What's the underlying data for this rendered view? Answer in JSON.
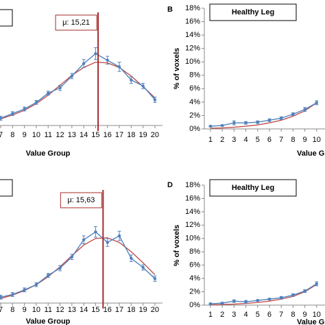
{
  "chart_data": [
    {
      "type": "line",
      "xlabel": "Value Group",
      "x": [
        7,
        8,
        9,
        10,
        11,
        12,
        13,
        14,
        15,
        16,
        17,
        18,
        19,
        20
      ],
      "xlim": [
        6.94,
        20.64
      ],
      "xticks": [
        7,
        8,
        9,
        10,
        11,
        12,
        13,
        14,
        15,
        16,
        17,
        18,
        19,
        20
      ],
      "ylim": [
        0,
        18
      ],
      "mu_line": {
        "value": 15.21,
        "label": "μ: 15,21"
      },
      "series": [
        {
          "color": "#4f81bd",
          "values": [
            1.1,
            1.8,
            2.5,
            3.5,
            4.9,
            5.7,
            7.5,
            9.4,
            10.9,
            9.9,
            8.9,
            6.9,
            6.0,
            3.9
          ],
          "errors": [
            0.3,
            0.3,
            0.3,
            0.3,
            0.3,
            0.4,
            0.4,
            0.6,
            0.9,
            0.6,
            0.7,
            0.5,
            0.4,
            0.4
          ]
        },
        {
          "color": "#c0504d",
          "values": [
            1.0,
            1.6,
            2.3,
            3.3,
            4.6,
            6.1,
            7.6,
            8.8,
            9.6,
            9.5,
            8.8,
            7.5,
            5.9,
            4.2
          ]
        }
      ]
    },
    {
      "type": "line",
      "panel_label": "B",
      "title": "Healthy Leg",
      "xlabel": "Value Group",
      "ylabel": "% of voxels",
      "x": [
        1,
        2,
        3,
        4,
        5,
        6,
        7,
        8,
        9,
        10
      ],
      "xlim": [
        0.48,
        10.71
      ],
      "xticks": [
        1,
        2,
        3,
        4,
        5,
        6,
        7,
        8,
        9,
        10
      ],
      "ylim": [
        0,
        18
      ],
      "yticks": [
        {
          "value": 0,
          "label": "0%"
        },
        {
          "value": 2,
          "label": "2%"
        },
        {
          "value": 4,
          "label": "4%"
        },
        {
          "value": 6,
          "label": "6%"
        },
        {
          "value": 8,
          "label": "8%"
        },
        {
          "value": 10,
          "label": "10%"
        },
        {
          "value": 12,
          "label": "12%"
        },
        {
          "value": 14,
          "label": "14%"
        },
        {
          "value": 16,
          "label": "16%"
        },
        {
          "value": 18,
          "label": "18%"
        }
      ],
      "series": [
        {
          "color": "#4f81bd",
          "values": [
            0.4,
            0.5,
            0.9,
            0.9,
            1.0,
            1.3,
            1.6,
            2.2,
            2.9,
            3.9
          ],
          "errors": [
            0.1,
            0.1,
            0.3,
            0.2,
            0.2,
            0.2,
            0.2,
            0.2,
            0.3,
            0.3
          ]
        },
        {
          "color": "#c0504d",
          "values": [
            0.1,
            0.15,
            0.25,
            0.4,
            0.6,
            0.9,
            1.3,
            1.9,
            2.7,
            3.9
          ]
        }
      ]
    },
    {
      "type": "line",
      "xlabel": "Value Group",
      "x": [
        7,
        8,
        9,
        10,
        11,
        12,
        13,
        14,
        15,
        16,
        17,
        18,
        19,
        20
      ],
      "xlim": [
        6.94,
        20.64
      ],
      "xticks": [
        7,
        8,
        9,
        10,
        11,
        12,
        13,
        14,
        15,
        16,
        17,
        18,
        19,
        20
      ],
      "ylim": [
        0,
        18
      ],
      "mu_line": {
        "value": 15.63,
        "label": "μ: 15,63"
      },
      "series": [
        {
          "color": "#4f81bd",
          "values": [
            0.9,
            1.3,
            2.0,
            2.8,
            4.2,
            5.3,
            7.0,
            9.6,
            10.8,
            9.2,
            10.2,
            6.8,
            5.4,
            3.7
          ],
          "errors": [
            0.3,
            0.3,
            0.3,
            0.3,
            0.3,
            0.4,
            0.4,
            0.6,
            0.8,
            0.6,
            0.7,
            0.5,
            0.4,
            0.4
          ]
        },
        {
          "color": "#c0504d",
          "values": [
            0.7,
            1.2,
            1.9,
            2.8,
            4.0,
            5.5,
            7.2,
            8.8,
            9.8,
            9.9,
            9.2,
            7.8,
            6.1,
            4.3
          ]
        }
      ]
    },
    {
      "type": "line",
      "panel_label": "D",
      "title": "Healthy Leg",
      "xlabel": "Value Group",
      "ylabel": "% of voxels",
      "x": [
        1,
        2,
        3,
        4,
        5,
        6,
        7,
        8,
        9,
        10
      ],
      "xlim": [
        0.48,
        10.71
      ],
      "xticks": [
        1,
        2,
        3,
        4,
        5,
        6,
        7,
        8,
        9,
        10
      ],
      "ylim": [
        0,
        18
      ],
      "yticks": [
        {
          "value": 0,
          "label": "0%"
        },
        {
          "value": 2,
          "label": "2%"
        },
        {
          "value": 4,
          "label": "4%"
        },
        {
          "value": 6,
          "label": "6%"
        },
        {
          "value": 8,
          "label": "8%"
        },
        {
          "value": 10,
          "label": "10%"
        },
        {
          "value": 12,
          "label": "12%"
        },
        {
          "value": 14,
          "label": "14%"
        },
        {
          "value": 16,
          "label": "16%"
        },
        {
          "value": 18,
          "label": "18%"
        }
      ],
      "series": [
        {
          "color": "#4f81bd",
          "values": [
            0.2,
            0.3,
            0.6,
            0.5,
            0.7,
            0.9,
            1.1,
            1.5,
            2.1,
            3.2
          ],
          "errors": [
            0.1,
            0.1,
            0.2,
            0.2,
            0.1,
            0.1,
            0.2,
            0.2,
            0.2,
            0.3
          ]
        },
        {
          "color": "#c0504d",
          "values": [
            0.05,
            0.1,
            0.15,
            0.25,
            0.4,
            0.6,
            0.9,
            1.3,
            2.0,
            3.1
          ]
        }
      ]
    }
  ]
}
